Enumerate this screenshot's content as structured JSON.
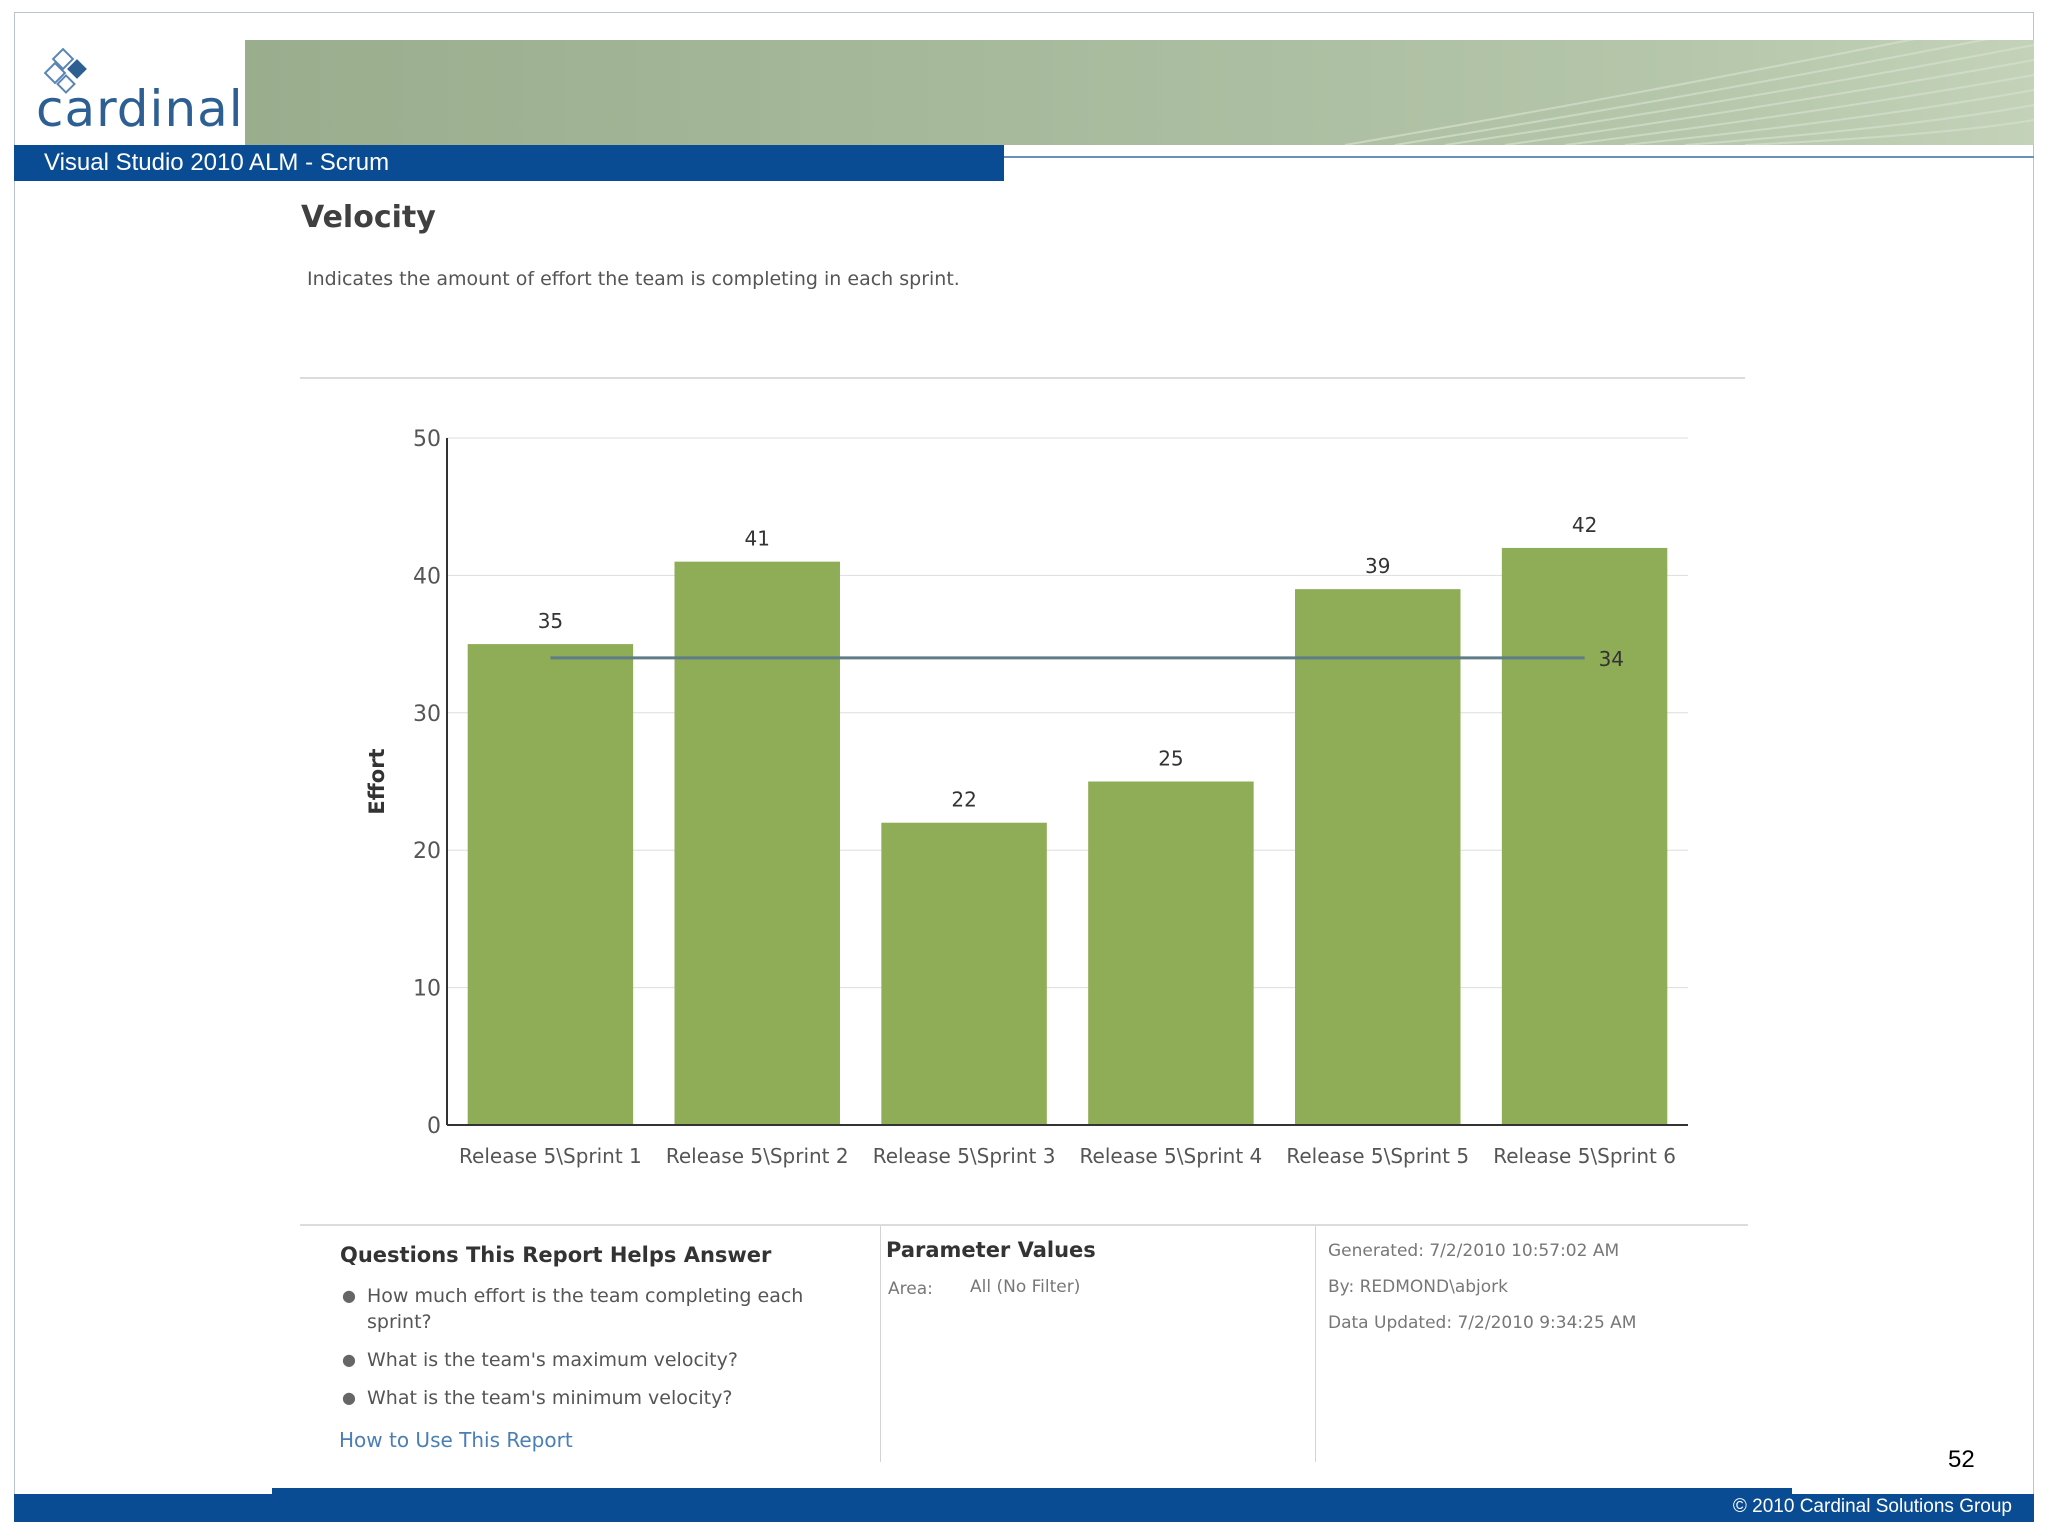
{
  "brand": {
    "logo_text": "cardinal",
    "title_bar": "Visual Studio 2010 ALM - Scrum",
    "copyright": "© 2010 Cardinal Solutions Group",
    "page_number": "52",
    "colors": {
      "primary_blue": "#0a4c94",
      "banner_green": "#a6b99b",
      "bar_green": "#8fac56"
    }
  },
  "report": {
    "title": "Velocity",
    "description": "Indicates the amount of effort the team is completing in each sprint."
  },
  "chart_data": {
    "type": "bar",
    "title": "",
    "xlabel": "",
    "ylabel": "Effort",
    "ylim": [
      0,
      50
    ],
    "yticks": [
      0,
      10,
      20,
      30,
      40,
      50
    ],
    "grid": true,
    "categories": [
      "Release 5\\Sprint 1",
      "Release 5\\Sprint 2",
      "Release 5\\Sprint 3",
      "Release 5\\Sprint 4",
      "Release 5\\Sprint 5",
      "Release 5\\Sprint 6"
    ],
    "values": [
      35,
      41,
      22,
      25,
      39,
      42
    ],
    "average": 34,
    "average_label": "34"
  },
  "questions": {
    "title": "Questions This Report Helps Answer",
    "items": [
      "How much effort is the team completing each sprint?",
      "What is the team's maximum velocity?",
      "What is the team's minimum velocity?"
    ],
    "link": "How to Use This Report"
  },
  "parameters": {
    "title": "Parameter Values",
    "area_label": "Area:",
    "area_value": "All (No Filter)"
  },
  "meta": {
    "generated": "Generated: 7/2/2010 10:57:02 AM",
    "by": "By: REDMOND\\abjork",
    "updated": "Data Updated: 7/2/2010 9:34:25 AM"
  }
}
